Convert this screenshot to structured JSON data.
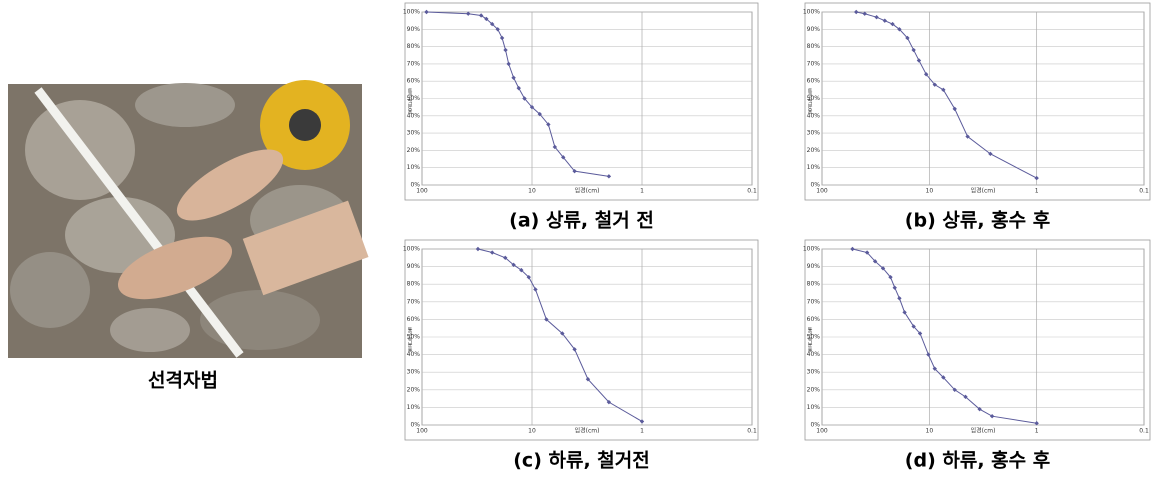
{
  "figure": {
    "photo_caption": "선격자법"
  },
  "chart_data": [
    {
      "type": "line",
      "caption": "(a) 상류, 철거 전",
      "x_label": "입경(cm)",
      "y_label": "통과백분율",
      "log_x": true,
      "grid": true,
      "color": "#5b5b9b",
      "xlim": [
        100,
        0.1
      ],
      "xticks": [
        100,
        10,
        1,
        0.1
      ],
      "ylim": [
        0,
        100
      ],
      "yticks": [
        {
          "value": 0,
          "label": "0%"
        },
        {
          "value": 10,
          "label": "10%"
        },
        {
          "value": 20,
          "label": "20%"
        },
        {
          "value": 30,
          "label": "30%"
        },
        {
          "value": 40,
          "label": "40%"
        },
        {
          "value": 50,
          "label": "50%"
        },
        {
          "value": 60,
          "label": "60%"
        },
        {
          "value": 70,
          "label": "70%"
        },
        {
          "value": 80,
          "label": "80%"
        },
        {
          "value": 90,
          "label": "90%"
        },
        {
          "value": 100,
          "label": "100%"
        }
      ],
      "x": [
        91,
        38,
        29,
        26,
        23,
        20.5,
        18.7,
        17.4,
        16.3,
        14.7,
        13.2,
        11.7,
        10,
        8.5,
        7.1,
        6.2,
        5.2,
        4.1,
        2.0
      ],
      "values": [
        100,
        99,
        98,
        96,
        93,
        90,
        85,
        78,
        70,
        62,
        56,
        50,
        45,
        41,
        35,
        22,
        16,
        8,
        5
      ]
    },
    {
      "type": "line",
      "caption": "(b) 상류, 홍수 후",
      "x_label": "입경(cm)",
      "y_label": "통과백분율",
      "log_x": true,
      "grid": true,
      "color": "#5b5b9b",
      "xlim": [
        100,
        0.1
      ],
      "xticks": [
        100,
        10,
        1,
        0.1
      ],
      "ylim": [
        0,
        100
      ],
      "yticks": [
        {
          "value": 0,
          "label": "0%"
        },
        {
          "value": 10,
          "label": "10%"
        },
        {
          "value": 20,
          "label": "20%"
        },
        {
          "value": 30,
          "label": "30%"
        },
        {
          "value": 40,
          "label": "40%"
        },
        {
          "value": 50,
          "label": "50%"
        },
        {
          "value": 60,
          "label": "60%"
        },
        {
          "value": 70,
          "label": "70%"
        },
        {
          "value": 80,
          "label": "80%"
        },
        {
          "value": 90,
          "label": "90%"
        },
        {
          "value": 100,
          "label": "100%"
        }
      ],
      "x": [
        48,
        40,
        31,
        26,
        22,
        19,
        16,
        14,
        12.5,
        10.7,
        8.9,
        7.4,
        5.8,
        4.4,
        2.7,
        1
      ],
      "values": [
        100,
        99,
        97,
        95,
        93,
        90,
        85,
        78,
        72,
        64,
        58,
        55,
        44,
        28,
        18,
        4
      ]
    },
    {
      "type": "line",
      "caption": "(c) 하류, 철거전",
      "x_label": "입경(cm)",
      "y_label": "통과백분율",
      "log_x": true,
      "grid": true,
      "color": "#5b5b9b",
      "xlim": [
        100,
        0.1
      ],
      "xticks": [
        100,
        10,
        1,
        0.1
      ],
      "ylim": [
        0,
        100
      ],
      "yticks": [
        {
          "value": 0,
          "label": "0%"
        },
        {
          "value": 10,
          "label": "10%"
        },
        {
          "value": 20,
          "label": "20%"
        },
        {
          "value": 30,
          "label": "30%"
        },
        {
          "value": 40,
          "label": "40%"
        },
        {
          "value": 50,
          "label": "50%"
        },
        {
          "value": 60,
          "label": "60%"
        },
        {
          "value": 70,
          "label": "70%"
        },
        {
          "value": 80,
          "label": "80%"
        },
        {
          "value": 90,
          "label": "90%"
        },
        {
          "value": 100,
          "label": "100%"
        }
      ],
      "x": [
        31,
        23,
        17.5,
        14.7,
        12.5,
        10.7,
        9.3,
        7.4,
        5.3,
        4.1,
        3.1,
        2,
        1
      ],
      "values": [
        100,
        98,
        95,
        91,
        88,
        84,
        77,
        60,
        52,
        43,
        26,
        13,
        2
      ]
    },
    {
      "type": "line",
      "caption": "(d) 하류, 홍수 후",
      "x_label": "입경(cm)",
      "y_label": "통과백분율",
      "log_x": true,
      "grid": true,
      "color": "#5b5b9b",
      "xlim": [
        100,
        0.1
      ],
      "xticks": [
        100,
        10,
        1,
        0.1
      ],
      "ylim": [
        0,
        100
      ],
      "yticks": [
        {
          "value": 0,
          "label": "0%"
        },
        {
          "value": 10,
          "label": "10%"
        },
        {
          "value": 20,
          "label": "20%"
        },
        {
          "value": 30,
          "label": "30%"
        },
        {
          "value": 40,
          "label": "40%"
        },
        {
          "value": 50,
          "label": "50%"
        },
        {
          "value": 60,
          "label": "60%"
        },
        {
          "value": 70,
          "label": "70%"
        },
        {
          "value": 80,
          "label": "80%"
        },
        {
          "value": 90,
          "label": "90%"
        },
        {
          "value": 100,
          "label": "100%"
        }
      ],
      "x": [
        52,
        38,
        32,
        27,
        23,
        21,
        19,
        17,
        14,
        12.2,
        10.2,
        8.9,
        7.4,
        5.8,
        4.6,
        3.4,
        2.6,
        1
      ],
      "values": [
        100,
        98,
        93,
        89,
        84,
        78,
        72,
        64,
        56,
        52,
        40,
        32,
        27,
        20,
        16,
        9,
        5,
        1
      ]
    }
  ]
}
